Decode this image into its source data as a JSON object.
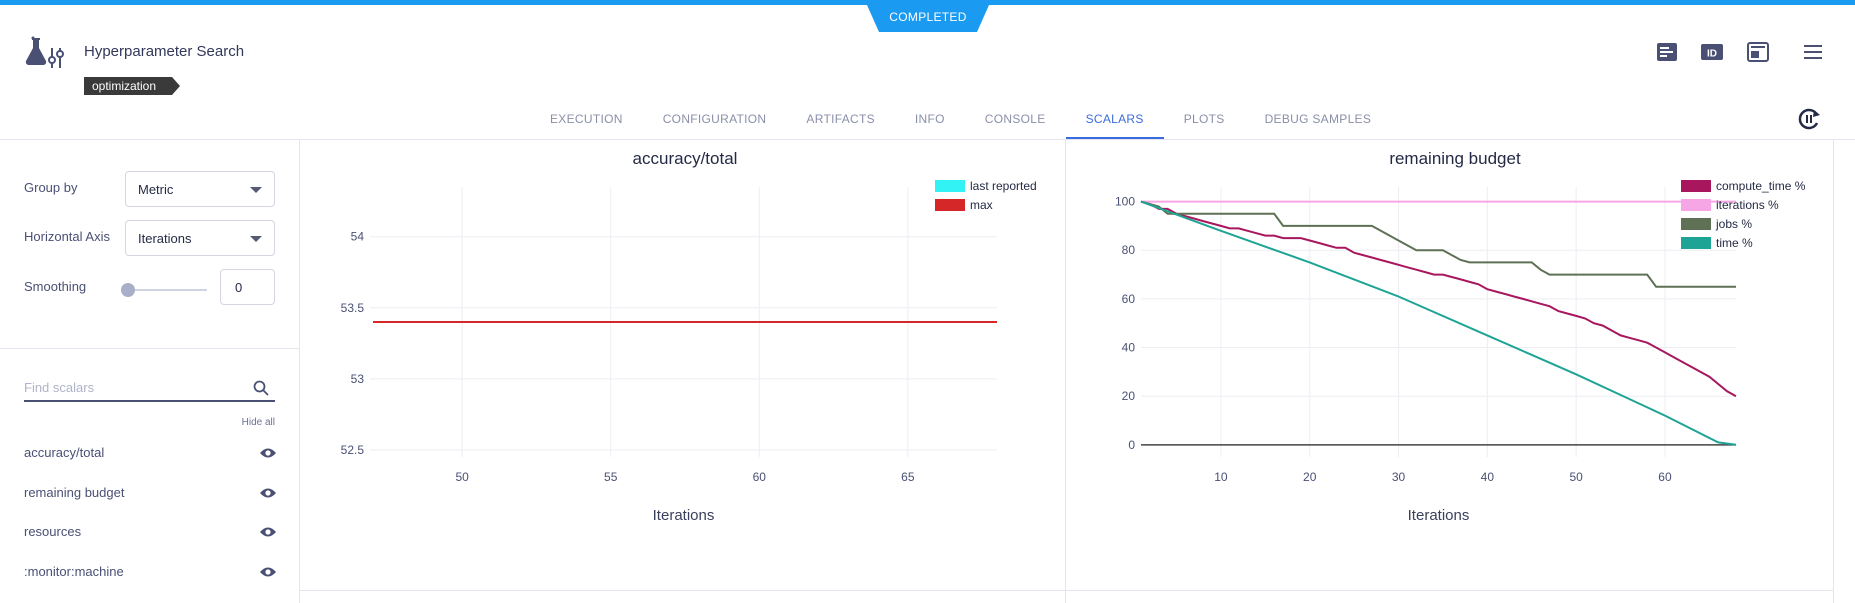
{
  "status": "COMPLETED",
  "task": {
    "title": "Hyperparameter Search",
    "tag": "optimization"
  },
  "header_icons": [
    "details-icon",
    "id-icon",
    "panel-layout-icon",
    "menu-icon"
  ],
  "tabs": [
    {
      "label": "EXECUTION",
      "active": false
    },
    {
      "label": "CONFIGURATION",
      "active": false
    },
    {
      "label": "ARTIFACTS",
      "active": false
    },
    {
      "label": "INFO",
      "active": false
    },
    {
      "label": "CONSOLE",
      "active": false
    },
    {
      "label": "SCALARS",
      "active": true
    },
    {
      "label": "PLOTS",
      "active": false
    },
    {
      "label": "DEBUG SAMPLES",
      "active": false
    }
  ],
  "controls": {
    "group_by_label": "Group by",
    "group_by_value": "Metric",
    "horizontal_axis_label": "Horizontal Axis",
    "horizontal_axis_value": "Iterations",
    "smoothing_label": "Smoothing",
    "smoothing_value": "0",
    "smoothing_level": 0
  },
  "search": {
    "placeholder": "Find scalars",
    "hide_all": "Hide all"
  },
  "metrics": [
    {
      "label": "accuracy/total",
      "icon": "eye-icon"
    },
    {
      "label": "remaining budget",
      "icon": "eye-icon"
    },
    {
      "label": "resources",
      "icon": "eye-icon"
    },
    {
      "label": ":monitor:machine",
      "icon": "eye-icon"
    }
  ],
  "colors": {
    "accent": "#3b6cdd",
    "status": "#1a9af0",
    "tag": "#3a3a3a"
  },
  "chart_data": [
    {
      "type": "line",
      "title": "accuracy/total",
      "xlabel": "Iterations",
      "ylabel": "",
      "xlim": [
        46.9,
        68
      ],
      "ylim": [
        52.45,
        54.35
      ],
      "xticks": [
        50,
        55,
        60,
        65
      ],
      "yticks": [
        52.5,
        53,
        53.5,
        54
      ],
      "ytick_labels": [
        "52.5",
        "53",
        "53.5",
        "54"
      ],
      "grid": true,
      "legend": "top-right",
      "series": [
        {
          "name": "last reported",
          "color": "#33f2f6",
          "x": [],
          "y": []
        },
        {
          "name": "max",
          "color": "#d62728",
          "x": [
            47,
            68
          ],
          "y": [
            53.4,
            53.4
          ]
        }
      ]
    },
    {
      "type": "line",
      "title": "remaining budget",
      "xlabel": "Iterations",
      "ylabel": "",
      "xlim": [
        1,
        68
      ],
      "ylim": [
        -5,
        106
      ],
      "xticks": [
        10,
        20,
        30,
        40,
        50,
        60
      ],
      "yticks": [
        0,
        20,
        40,
        60,
        80,
        100
      ],
      "ytick_labels": [
        "0",
        "20",
        "40",
        "60",
        "80",
        "100"
      ],
      "grid": true,
      "legend": "top-right",
      "series": [
        {
          "name": "compute_time %",
          "color": "#a8175e",
          "x": [
            1,
            2,
            3,
            4,
            5,
            6,
            7,
            8,
            9,
            10,
            11,
            12,
            13,
            14,
            15,
            16,
            17,
            18,
            19,
            20,
            21,
            22,
            23,
            24,
            25,
            26,
            27,
            28,
            29,
            30,
            31,
            32,
            33,
            34,
            35,
            36,
            37,
            38,
            39,
            40,
            41,
            42,
            43,
            44,
            45,
            46,
            47,
            48,
            49,
            50,
            51,
            52,
            53,
            54,
            55,
            56,
            57,
            58,
            59,
            60,
            61,
            62,
            63,
            64,
            65,
            66,
            67,
            68
          ],
          "y": [
            100,
            99,
            97,
            97,
            95,
            94,
            93,
            92,
            91,
            90,
            89,
            89,
            88,
            87,
            86,
            86,
            85,
            85,
            85,
            84,
            83,
            82,
            81,
            81,
            79,
            78,
            77,
            76,
            75,
            74,
            73,
            72,
            71,
            70,
            70,
            69,
            68,
            67,
            66,
            64,
            63,
            62,
            61,
            60,
            59,
            58,
            57,
            55,
            54,
            53,
            52,
            50,
            49,
            47,
            45,
            44,
            43,
            42,
            40,
            38,
            36,
            34,
            32,
            30,
            28,
            25,
            22,
            20
          ],
          "approx": true
        },
        {
          "name": "iterations %",
          "color": "#f6a6e4",
          "x": [
            1,
            68
          ],
          "y": [
            100,
            100
          ]
        },
        {
          "name": "jobs %",
          "color": "#5f7155",
          "x": [
            1,
            3,
            4,
            16,
            17,
            27,
            28,
            29,
            30,
            31,
            32,
            35,
            36,
            37,
            38,
            45,
            46,
            47,
            58,
            59,
            68
          ],
          "y": [
            100,
            98,
            95,
            95,
            90,
            90,
            88,
            86,
            84,
            82,
            80,
            80,
            78,
            76,
            75,
            75,
            72,
            70,
            70,
            65,
            65
          ]
        },
        {
          "name": "time %",
          "color": "#1ea495",
          "x": [
            1,
            10,
            20,
            30,
            40,
            50,
            60,
            66,
            68
          ],
          "y": [
            100,
            88,
            75,
            61,
            45,
            29,
            12,
            1,
            0
          ]
        }
      ],
      "baseline": {
        "color": "#444444",
        "y": 0
      }
    }
  ]
}
